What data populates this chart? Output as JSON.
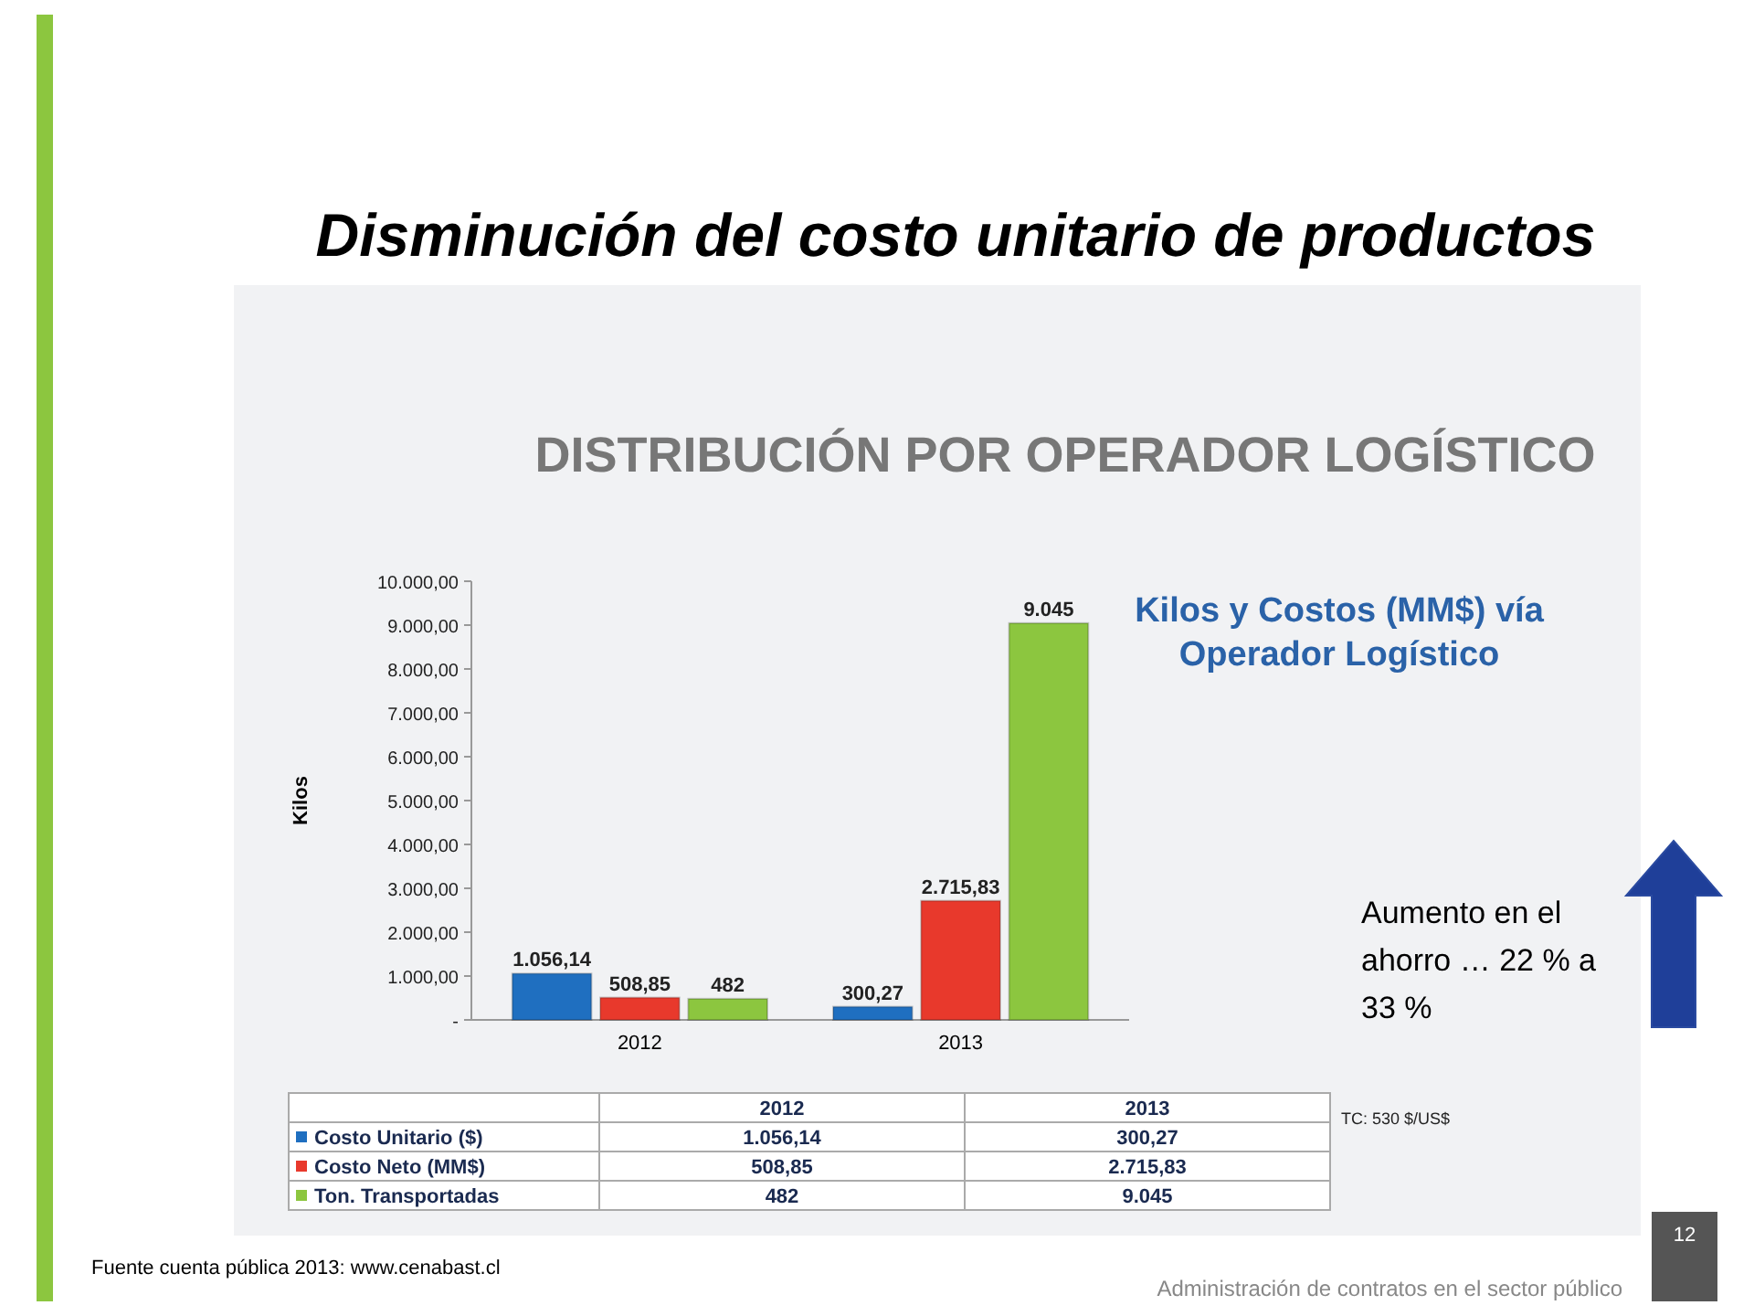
{
  "chart_data": {
    "type": "bar",
    "title": "Disminución del costo unitario de productos",
    "subtitle": "DISTRIBUCIÓN POR OPERADOR LOGÍSTICO\nKilos y Costos (MM$) vía Operador Logístico",
    "ylabel": "Kilos",
    "categories": [
      "2012",
      "2013"
    ],
    "series": [
      {
        "name": "Costo Unitario ($)",
        "color": "#1f6fc0",
        "values": [
          1056.14,
          300.27
        ],
        "value_labels": [
          "1.056,14",
          "300,27"
        ]
      },
      {
        "name": "Costo Neto (MM$)",
        "color": "#e8392c",
        "values": [
          508.85,
          2715.83
        ],
        "value_labels": [
          "508,85",
          "2.715,83"
        ]
      },
      {
        "name": "Ton. Transportadas",
        "color": "#8cc63f",
        "values": [
          482,
          9045
        ],
        "value_labels": [
          "482",
          "9.045"
        ]
      }
    ],
    "ylim": [
      0,
      10000
    ],
    "yticks": [
      {
        "value": 0,
        "label": "-"
      },
      {
        "value": 1000,
        "label": "1.000,00"
      },
      {
        "value": 2000,
        "label": "2.000,00"
      },
      {
        "value": 3000,
        "label": "3.000,00"
      },
      {
        "value": 4000,
        "label": "4.000,00"
      },
      {
        "value": 5000,
        "label": "5.000,00"
      },
      {
        "value": 6000,
        "label": "6.000,00"
      },
      {
        "value": 7000,
        "label": "7.000,00"
      },
      {
        "value": 8000,
        "label": "8.000,00"
      },
      {
        "value": 9000,
        "label": "9.000,00"
      },
      {
        "value": 10000,
        "label": "10.000,00"
      }
    ],
    "grid": false,
    "legend": "bottom",
    "annotations": [
      "Aumento en el ahorro … 22 % a 33 %",
      "TC: 530 $/US$",
      "Fuente cuenta pública 2013: www.cenabast.cl",
      "Administración de contratos en el sector público",
      "12"
    ]
  }
}
